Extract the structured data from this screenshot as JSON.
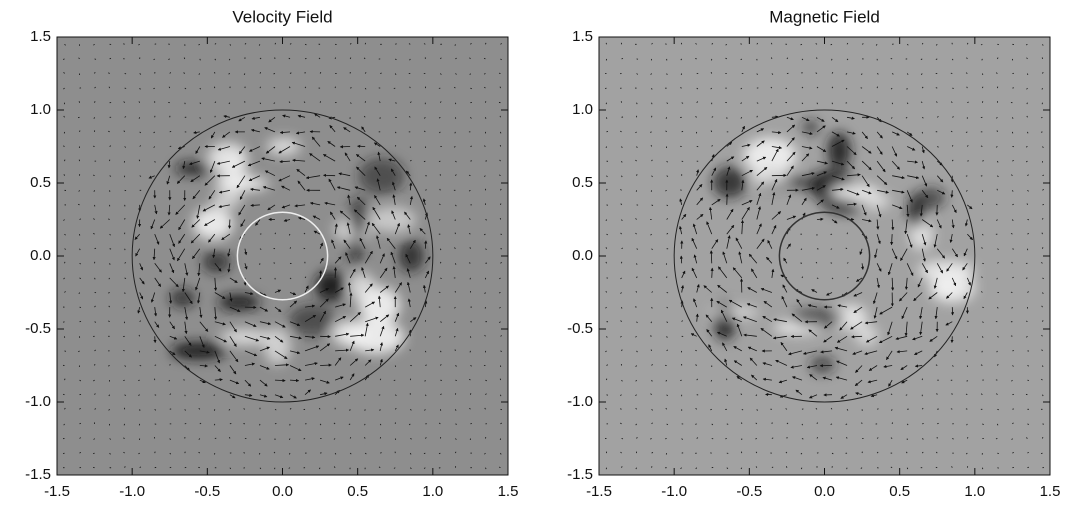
{
  "chart_data": [
    {
      "type": "vector_field",
      "title": "Velocity Field",
      "background": "#8e8e8e",
      "xlim": [
        -1.5,
        1.5
      ],
      "ylim": [
        -1.5,
        1.5
      ],
      "xticks": [
        -1.5,
        {
          "value": -1,
          "label": "-1.0"
        },
        -0.5,
        {
          "value": 0,
          "label": "0.0"
        },
        0.5,
        {
          "value": 1,
          "label": "1.0"
        },
        1.5
      ],
      "yticks": [
        -1.5,
        {
          "value": -1,
          "label": "-1.0"
        },
        -0.5,
        {
          "value": 0,
          "label": "0.0"
        },
        0.5,
        {
          "value": 1,
          "label": "1.0"
        },
        1.5
      ]
    },
    {
      "type": "vector_field",
      "title": "Magnetic Field",
      "background": "#a2a2a2",
      "xlim": [
        -1.5,
        1.5
      ],
      "ylim": [
        -1.5,
        1.5
      ],
      "xticks": [
        -1.5,
        {
          "value": -1,
          "label": "-1.0"
        },
        -0.5,
        {
          "value": 0,
          "label": "0.0"
        },
        0.5,
        {
          "value": 1,
          "label": "1.0"
        },
        1.5
      ],
      "yticks": [
        -1.5,
        {
          "value": -1,
          "label": "-1.0"
        },
        -0.5,
        {
          "value": 0,
          "label": "0.0"
        },
        0.5,
        {
          "value": 1,
          "label": "1.0"
        },
        1.5
      ]
    }
  ]
}
